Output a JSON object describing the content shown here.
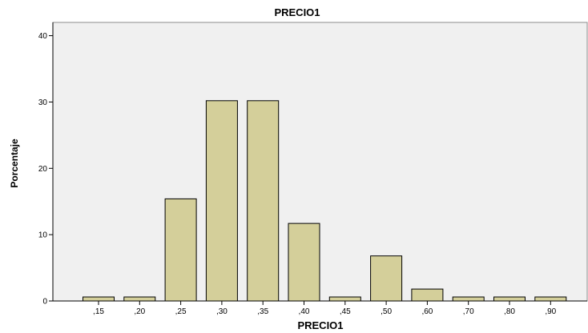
{
  "chart_data": {
    "type": "bar",
    "title": "PRECIO1",
    "xlabel": "PRECIO1",
    "ylabel": "Porcentaje",
    "categories": [
      ",15",
      ",20",
      ",25",
      ",30",
      ",35",
      ",40",
      ",45",
      ",50",
      ",60",
      ",70",
      ",80",
      ",90"
    ],
    "values": [
      0.6,
      0.6,
      15.4,
      30.2,
      30.2,
      11.7,
      0.6,
      6.8,
      1.8,
      0.6,
      0.6,
      0.6
    ],
    "ylim": [
      0,
      42
    ],
    "yticks": [
      0,
      10,
      20,
      30,
      40
    ],
    "grid": false,
    "colors": {
      "bar_fill": "#d4cf9a",
      "bar_stroke": "#000000",
      "plot_background": "#f0f0f0"
    }
  }
}
